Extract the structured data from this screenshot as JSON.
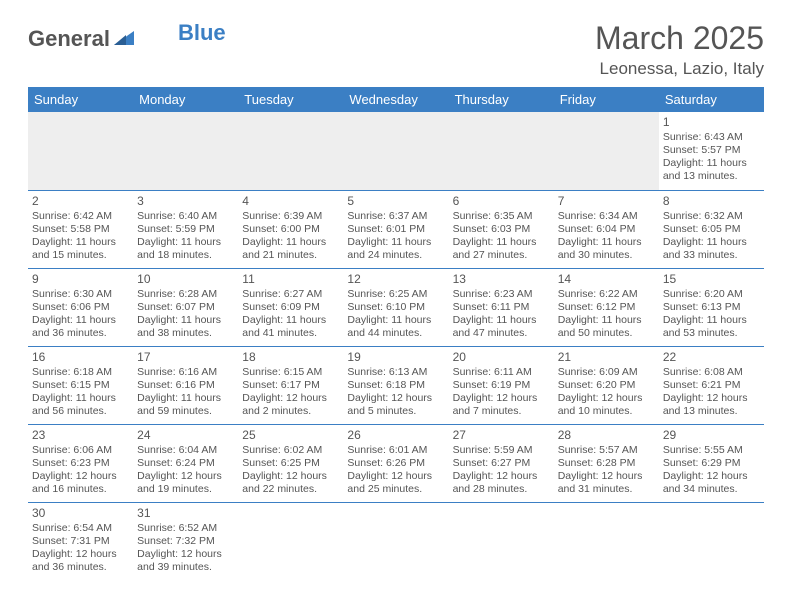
{
  "logo": {
    "word1": "General",
    "word2": "Blue"
  },
  "title": "March 2025",
  "location": "Leonessa, Lazio, Italy",
  "colors": {
    "header_bg": "#3b7fc4",
    "header_text": "#ffffff",
    "body_text": "#555555",
    "empty_bg": "#eeeeee",
    "cell_border": "#3b7fc4"
  },
  "fonts": {
    "title_size": 32,
    "location_size": 17,
    "day_header_size": 13,
    "cell_size": 10.5
  },
  "day_headers": [
    "Sunday",
    "Monday",
    "Tuesday",
    "Wednesday",
    "Thursday",
    "Friday",
    "Saturday"
  ],
  "weeks": [
    [
      null,
      null,
      null,
      null,
      null,
      null,
      {
        "d": "1",
        "sr": "Sunrise: 6:43 AM",
        "ss": "Sunset: 5:57 PM",
        "dl": "Daylight: 11 hours and 13 minutes."
      }
    ],
    [
      {
        "d": "2",
        "sr": "Sunrise: 6:42 AM",
        "ss": "Sunset: 5:58 PM",
        "dl": "Daylight: 11 hours and 15 minutes."
      },
      {
        "d": "3",
        "sr": "Sunrise: 6:40 AM",
        "ss": "Sunset: 5:59 PM",
        "dl": "Daylight: 11 hours and 18 minutes."
      },
      {
        "d": "4",
        "sr": "Sunrise: 6:39 AM",
        "ss": "Sunset: 6:00 PM",
        "dl": "Daylight: 11 hours and 21 minutes."
      },
      {
        "d": "5",
        "sr": "Sunrise: 6:37 AM",
        "ss": "Sunset: 6:01 PM",
        "dl": "Daylight: 11 hours and 24 minutes."
      },
      {
        "d": "6",
        "sr": "Sunrise: 6:35 AM",
        "ss": "Sunset: 6:03 PM",
        "dl": "Daylight: 11 hours and 27 minutes."
      },
      {
        "d": "7",
        "sr": "Sunrise: 6:34 AM",
        "ss": "Sunset: 6:04 PM",
        "dl": "Daylight: 11 hours and 30 minutes."
      },
      {
        "d": "8",
        "sr": "Sunrise: 6:32 AM",
        "ss": "Sunset: 6:05 PM",
        "dl": "Daylight: 11 hours and 33 minutes."
      }
    ],
    [
      {
        "d": "9",
        "sr": "Sunrise: 6:30 AM",
        "ss": "Sunset: 6:06 PM",
        "dl": "Daylight: 11 hours and 36 minutes."
      },
      {
        "d": "10",
        "sr": "Sunrise: 6:28 AM",
        "ss": "Sunset: 6:07 PM",
        "dl": "Daylight: 11 hours and 38 minutes."
      },
      {
        "d": "11",
        "sr": "Sunrise: 6:27 AM",
        "ss": "Sunset: 6:09 PM",
        "dl": "Daylight: 11 hours and 41 minutes."
      },
      {
        "d": "12",
        "sr": "Sunrise: 6:25 AM",
        "ss": "Sunset: 6:10 PM",
        "dl": "Daylight: 11 hours and 44 minutes."
      },
      {
        "d": "13",
        "sr": "Sunrise: 6:23 AM",
        "ss": "Sunset: 6:11 PM",
        "dl": "Daylight: 11 hours and 47 minutes."
      },
      {
        "d": "14",
        "sr": "Sunrise: 6:22 AM",
        "ss": "Sunset: 6:12 PM",
        "dl": "Daylight: 11 hours and 50 minutes."
      },
      {
        "d": "15",
        "sr": "Sunrise: 6:20 AM",
        "ss": "Sunset: 6:13 PM",
        "dl": "Daylight: 11 hours and 53 minutes."
      }
    ],
    [
      {
        "d": "16",
        "sr": "Sunrise: 6:18 AM",
        "ss": "Sunset: 6:15 PM",
        "dl": "Daylight: 11 hours and 56 minutes."
      },
      {
        "d": "17",
        "sr": "Sunrise: 6:16 AM",
        "ss": "Sunset: 6:16 PM",
        "dl": "Daylight: 11 hours and 59 minutes."
      },
      {
        "d": "18",
        "sr": "Sunrise: 6:15 AM",
        "ss": "Sunset: 6:17 PM",
        "dl": "Daylight: 12 hours and 2 minutes."
      },
      {
        "d": "19",
        "sr": "Sunrise: 6:13 AM",
        "ss": "Sunset: 6:18 PM",
        "dl": "Daylight: 12 hours and 5 minutes."
      },
      {
        "d": "20",
        "sr": "Sunrise: 6:11 AM",
        "ss": "Sunset: 6:19 PM",
        "dl": "Daylight: 12 hours and 7 minutes."
      },
      {
        "d": "21",
        "sr": "Sunrise: 6:09 AM",
        "ss": "Sunset: 6:20 PM",
        "dl": "Daylight: 12 hours and 10 minutes."
      },
      {
        "d": "22",
        "sr": "Sunrise: 6:08 AM",
        "ss": "Sunset: 6:21 PM",
        "dl": "Daylight: 12 hours and 13 minutes."
      }
    ],
    [
      {
        "d": "23",
        "sr": "Sunrise: 6:06 AM",
        "ss": "Sunset: 6:23 PM",
        "dl": "Daylight: 12 hours and 16 minutes."
      },
      {
        "d": "24",
        "sr": "Sunrise: 6:04 AM",
        "ss": "Sunset: 6:24 PM",
        "dl": "Daylight: 12 hours and 19 minutes."
      },
      {
        "d": "25",
        "sr": "Sunrise: 6:02 AM",
        "ss": "Sunset: 6:25 PM",
        "dl": "Daylight: 12 hours and 22 minutes."
      },
      {
        "d": "26",
        "sr": "Sunrise: 6:01 AM",
        "ss": "Sunset: 6:26 PM",
        "dl": "Daylight: 12 hours and 25 minutes."
      },
      {
        "d": "27",
        "sr": "Sunrise: 5:59 AM",
        "ss": "Sunset: 6:27 PM",
        "dl": "Daylight: 12 hours and 28 minutes."
      },
      {
        "d": "28",
        "sr": "Sunrise: 5:57 AM",
        "ss": "Sunset: 6:28 PM",
        "dl": "Daylight: 12 hours and 31 minutes."
      },
      {
        "d": "29",
        "sr": "Sunrise: 5:55 AM",
        "ss": "Sunset: 6:29 PM",
        "dl": "Daylight: 12 hours and 34 minutes."
      }
    ],
    [
      {
        "d": "30",
        "sr": "Sunrise: 6:54 AM",
        "ss": "Sunset: 7:31 PM",
        "dl": "Daylight: 12 hours and 36 minutes."
      },
      {
        "d": "31",
        "sr": "Sunrise: 6:52 AM",
        "ss": "Sunset: 7:32 PM",
        "dl": "Daylight: 12 hours and 39 minutes."
      },
      null,
      null,
      null,
      null,
      null
    ]
  ]
}
